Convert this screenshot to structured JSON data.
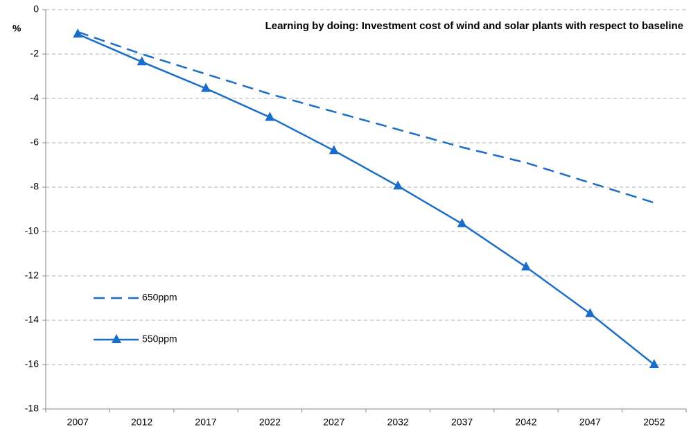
{
  "chart_data": {
    "type": "line",
    "title": "Learning by doing: Investment cost of wind and solar plants with respect to baseline",
    "y_label": "%",
    "categories": [
      "2007",
      "2012",
      "2017",
      "2022",
      "2027",
      "2032",
      "2037",
      "2042",
      "2047",
      "2052"
    ],
    "series": [
      {
        "name": "650ppm",
        "color": "#1a6dc8",
        "line_style": "dashed",
        "marker": "none",
        "values": [
          -1.0,
          -2.0,
          -2.9,
          -3.8,
          -4.6,
          -5.4,
          -6.2,
          -6.9,
          -7.8,
          -8.7
        ]
      },
      {
        "name": "550ppm",
        "color": "#1a6dc8",
        "line_style": "solid",
        "marker": "triangle",
        "values": [
          -1.1,
          -2.35,
          -3.55,
          -4.85,
          -6.35,
          -7.95,
          -9.65,
          -11.6,
          -13.7,
          -16.0
        ]
      }
    ],
    "ylim": [
      -18,
      0
    ],
    "yticks": [
      0,
      -2,
      -4,
      -6,
      -8,
      -10,
      -12,
      -14,
      -16,
      -18
    ],
    "grid": true,
    "legend": "left"
  }
}
